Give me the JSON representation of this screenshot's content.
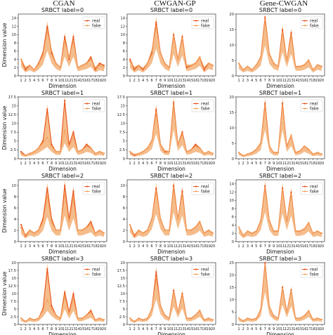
{
  "columns": [
    "CGAN",
    "CWGAN-GP",
    "Gene-CWGAN"
  ],
  "chart_data": [
    {
      "panel": "CGAN label 0",
      "type": "line",
      "title": "SRBCT label=0",
      "xlabel": "Dimension",
      "ylabel": "Dimension value",
      "categories": [
        "1",
        "2",
        "3",
        "4",
        "5",
        "6",
        "7",
        "8",
        "9",
        "10",
        "11",
        "12",
        "13",
        "14",
        "15",
        "16",
        "17",
        "18",
        "19",
        "20"
      ],
      "ylim": [
        0,
        15
      ],
      "yticks": [
        0,
        2,
        4,
        6,
        8,
        10,
        12,
        14
      ],
      "series": [
        {
          "name": "real",
          "values": [
            4,
            1.5,
            2.5,
            1.5,
            3,
            5.5,
            12,
            5.5,
            3,
            2,
            9.5,
            4,
            9.5,
            2,
            2.5,
            3,
            4.5,
            1.5,
            3,
            2.5
          ]
        },
        {
          "name": "fake",
          "values": [
            4,
            2,
            2.5,
            1.5,
            2.8,
            5,
            11,
            6,
            3,
            2,
            8.5,
            4.5,
            8.5,
            2,
            2.5,
            3,
            4,
            2,
            2.5,
            2
          ]
        }
      ]
    },
    {
      "panel": "CWGAN-GP label 0",
      "type": "line",
      "title": "SRBCT label=0",
      "xlabel": "Dimension",
      "ylabel": "",
      "categories": [
        "1",
        "2",
        "3",
        "4",
        "5",
        "6",
        "7",
        "8",
        "9",
        "10",
        "11",
        "12",
        "13",
        "14",
        "15",
        "16",
        "17",
        "18",
        "19",
        "20"
      ],
      "ylim": [
        0,
        15
      ],
      "yticks": [
        0,
        2,
        4,
        6,
        8,
        10,
        12,
        14
      ],
      "series": [
        {
          "name": "real",
          "values": [
            4,
            1.5,
            2.5,
            1.5,
            3,
            5.5,
            13,
            5.5,
            3,
            2,
            10,
            4,
            9.5,
            2,
            2.5,
            3,
            4.5,
            1.5,
            3,
            2.5
          ]
        },
        {
          "name": "fake",
          "values": [
            3.5,
            2,
            2.5,
            1.8,
            3,
            6,
            12,
            5.5,
            3,
            2,
            9.5,
            4,
            9,
            2.5,
            2.5,
            3,
            4.5,
            2,
            3,
            2.5
          ]
        }
      ]
    },
    {
      "panel": "Gene-CWGAN label 0",
      "type": "line",
      "title": "SRBCT label=0",
      "xlabel": "Dimension",
      "ylabel": "",
      "categories": [
        "1",
        "2",
        "3",
        "4",
        "5",
        "6",
        "7",
        "8",
        "9",
        "10",
        "11",
        "12",
        "13",
        "14",
        "15",
        "16",
        "17",
        "18",
        "19",
        "20"
      ],
      "ylim": [
        0,
        20
      ],
      "yticks": [
        0,
        5,
        10,
        15,
        20
      ],
      "series": [
        {
          "name": "real",
          "values": [
            4,
            2,
            3,
            2,
            3.5,
            6,
            19,
            7,
            4,
            3,
            15,
            5,
            14,
            3,
            3,
            3.5,
            5,
            2,
            3.5,
            3
          ]
        },
        {
          "name": "fake",
          "values": [
            4,
            2,
            3,
            2,
            3.5,
            6,
            18,
            7,
            4,
            3,
            14,
            5,
            13,
            3,
            3,
            3.5,
            5,
            2,
            3.5,
            3
          ]
        }
      ]
    },
    {
      "panel": "CGAN label 1",
      "type": "line",
      "title": "SRBCT label=1",
      "xlabel": "Dimension",
      "ylabel": "Dimension value",
      "categories": [
        "1",
        "2",
        "3",
        "4",
        "5",
        "6",
        "7",
        "8",
        "9",
        "10",
        "11",
        "12",
        "13",
        "14",
        "15",
        "16",
        "17",
        "18",
        "19",
        "20"
      ],
      "ylim": [
        0,
        17.5
      ],
      "yticks": [
        0,
        2.5,
        5.0,
        7.5,
        10.0,
        12.5,
        15.0,
        17.5
      ],
      "series": [
        {
          "name": "real",
          "values": [
            2,
            1,
            1.5,
            2,
            3,
            5,
            14,
            4,
            2,
            2,
            16.5,
            4,
            7.5,
            2,
            2.5,
            4,
            3,
            1.5,
            2,
            1.5
          ]
        },
        {
          "name": "fake",
          "values": [
            1.5,
            1,
            1.5,
            2,
            3,
            4.5,
            6,
            3.5,
            2,
            2,
            8,
            3.5,
            6,
            2,
            2.5,
            3.5,
            3,
            1.5,
            2,
            1.5
          ]
        }
      ]
    },
    {
      "panel": "CWGAN-GP label 1",
      "type": "line",
      "title": "SRBCT label=1",
      "xlabel": "Dimension",
      "ylabel": "",
      "categories": [
        "1",
        "2",
        "3",
        "4",
        "5",
        "6",
        "7",
        "8",
        "9",
        "10",
        "11",
        "12",
        "13",
        "14",
        "15",
        "16",
        "17",
        "18",
        "19",
        "20"
      ],
      "ylim": [
        0,
        17.5
      ],
      "yticks": [
        0,
        2.5,
        5.0,
        7.5,
        10.0,
        12.5,
        15.0,
        17.5
      ],
      "series": [
        {
          "name": "real",
          "values": [
            2,
            1,
            1.5,
            2,
            3,
            5,
            14,
            4,
            2,
            2,
            16,
            4,
            7.5,
            2,
            2.5,
            4,
            3,
            1.5,
            2,
            1.5
          ]
        },
        {
          "name": "fake",
          "values": [
            2,
            1.2,
            1.5,
            2,
            3,
            5,
            13,
            4,
            2.2,
            2,
            15,
            4,
            7,
            2,
            2.5,
            3.5,
            3,
            1.5,
            2,
            1.5
          ]
        }
      ]
    },
    {
      "panel": "Gene-CWGAN label 1",
      "type": "line",
      "title": "SRBCT label=1",
      "xlabel": "Dimension",
      "ylabel": "",
      "categories": [
        "1",
        "2",
        "3",
        "4",
        "5",
        "6",
        "7",
        "8",
        "9",
        "10",
        "11",
        "12",
        "13",
        "14",
        "15",
        "16",
        "17",
        "18",
        "19",
        "20"
      ],
      "ylim": [
        0,
        20
      ],
      "yticks": [
        0,
        5,
        10,
        15,
        20
      ],
      "series": [
        {
          "name": "real",
          "values": [
            2,
            1,
            1.5,
            2,
            3,
            5,
            18,
            4,
            2,
            2,
            18,
            4,
            7.5,
            2,
            2.5,
            4,
            3,
            1.5,
            2,
            1.5
          ]
        },
        {
          "name": "fake",
          "values": [
            2,
            1,
            1.5,
            2,
            3,
            5,
            17,
            4,
            2,
            2,
            17,
            4,
            7.5,
            2,
            2.5,
            4,
            3,
            1.5,
            2,
            1.5
          ]
        }
      ]
    },
    {
      "panel": "CGAN label 2",
      "type": "line",
      "title": "SRBCT label=2",
      "xlabel": "Dimension",
      "ylabel": "Dimension value",
      "categories": [
        "1",
        "2",
        "3",
        "4",
        "5",
        "6",
        "7",
        "8",
        "9",
        "10",
        "11",
        "12",
        "13",
        "14",
        "15",
        "16",
        "17",
        "18",
        "19",
        "20"
      ],
      "ylim": [
        0,
        11
      ],
      "yticks": [
        0,
        2,
        4,
        6,
        8,
        10
      ],
      "series": [
        {
          "name": "real",
          "values": [
            3,
            1,
            2,
            1.5,
            2,
            4,
            9.5,
            4,
            2,
            2,
            10,
            4,
            9,
            2,
            2,
            2.5,
            3.5,
            1.5,
            2,
            1.5
          ]
        },
        {
          "name": "fake",
          "values": [
            2.5,
            1.2,
            2,
            1.5,
            2,
            3.5,
            8,
            3.5,
            2,
            2,
            8.5,
            3.5,
            7.5,
            2,
            2,
            2.5,
            3,
            1.5,
            2,
            1.5
          ]
        }
      ]
    },
    {
      "panel": "CWGAN-GP label 2",
      "type": "line",
      "title": "SRBCT label=2",
      "xlabel": "Dimension",
      "ylabel": "",
      "categories": [
        "1",
        "2",
        "3",
        "4",
        "5",
        "6",
        "7",
        "8",
        "9",
        "10",
        "11",
        "12",
        "13",
        "14",
        "15",
        "16",
        "17",
        "18",
        "19",
        "20"
      ],
      "ylim": [
        0,
        11
      ],
      "yticks": [
        0,
        2,
        4,
        6,
        8,
        10
      ],
      "series": [
        {
          "name": "real",
          "values": [
            3,
            1,
            2,
            1.5,
            2,
            4,
            9.5,
            4,
            2,
            2,
            10,
            4,
            9,
            2,
            2,
            2.5,
            3.5,
            1.5,
            2,
            1.5
          ]
        },
        {
          "name": "fake",
          "values": [
            3,
            1.2,
            2,
            1.5,
            2,
            4,
            9,
            4,
            2,
            2,
            9.5,
            4,
            8.5,
            2,
            2,
            2.5,
            3.5,
            1.5,
            2,
            1.5
          ]
        }
      ]
    },
    {
      "panel": "Gene-CWGAN label 2",
      "type": "line",
      "title": "SRBCT label=2",
      "xlabel": "Dimension",
      "ylabel": "",
      "categories": [
        "1",
        "2",
        "3",
        "4",
        "5",
        "6",
        "7",
        "8",
        "9",
        "10",
        "11",
        "12",
        "13",
        "14",
        "15",
        "16",
        "17",
        "18",
        "19",
        "20"
      ],
      "ylim": [
        0,
        15
      ],
      "yticks": [
        0,
        2,
        4,
        6,
        8,
        10,
        12,
        14
      ],
      "series": [
        {
          "name": "real",
          "values": [
            3.5,
            1.5,
            2.5,
            2,
            2.5,
            5,
            13.5,
            5,
            2.5,
            2.5,
            13,
            5,
            12,
            2.5,
            2.5,
            3,
            4.5,
            2,
            2.5,
            2
          ]
        },
        {
          "name": "fake",
          "values": [
            3.5,
            1.5,
            2.5,
            2,
            2.5,
            5,
            13,
            5,
            2.5,
            2.5,
            12.5,
            5,
            11.5,
            2.5,
            2.5,
            3,
            4.5,
            2,
            2.5,
            2
          ]
        }
      ]
    },
    {
      "panel": "CGAN label 3",
      "type": "line",
      "title": "SRBCT label=3",
      "xlabel": "Dimension",
      "ylabel": "Dimension value",
      "categories": [
        "1",
        "2",
        "3",
        "4",
        "5",
        "6",
        "7",
        "8",
        "9",
        "10",
        "11",
        "12",
        "13",
        "14",
        "15",
        "16",
        "17",
        "18",
        "19",
        "20"
      ],
      "ylim": [
        0,
        20
      ],
      "yticks": [
        0,
        2.5,
        5.0,
        7.5,
        10.0,
        12.5,
        15.0,
        17.5,
        20.0
      ],
      "series": [
        {
          "name": "real",
          "values": [
            2,
            1,
            2,
            1.5,
            2,
            5,
            18,
            6,
            3,
            2,
            10.5,
            4,
            10,
            2,
            2,
            3,
            4.5,
            1.5,
            2,
            1.5
          ]
        },
        {
          "name": "fake",
          "values": [
            2,
            1,
            2,
            1.5,
            2,
            4.5,
            8,
            5,
            3,
            2,
            9,
            3.5,
            8,
            2,
            2,
            3,
            4,
            1.5,
            2,
            1.5
          ]
        }
      ]
    },
    {
      "panel": "CWGAN-GP label 3",
      "type": "line",
      "title": "SRBCT label=3",
      "xlabel": "Dimension",
      "ylabel": "",
      "categories": [
        "1",
        "2",
        "3",
        "4",
        "5",
        "6",
        "7",
        "8",
        "9",
        "10",
        "11",
        "12",
        "13",
        "14",
        "15",
        "16",
        "17",
        "18",
        "19",
        "20"
      ],
      "ylim": [
        0,
        20
      ],
      "yticks": [
        0,
        2.5,
        5.0,
        7.5,
        10.0,
        12.5,
        15.0,
        17.5,
        20.0
      ],
      "series": [
        {
          "name": "real",
          "values": [
            2,
            1,
            2,
            1.5,
            2,
            5,
            17,
            6,
            3,
            2,
            11,
            4,
            10,
            2,
            2,
            3,
            4.5,
            1.5,
            2,
            1.5
          ]
        },
        {
          "name": "fake",
          "values": [
            2,
            1,
            2,
            1.5,
            2,
            5,
            15,
            6,
            3,
            2,
            10.5,
            4,
            9.5,
            2,
            2,
            3,
            4.5,
            1.5,
            2,
            1.5
          ]
        }
      ]
    },
    {
      "panel": "Gene-CWGAN label 3",
      "type": "line",
      "title": "SRBCT label=3",
      "xlabel": "Dimension",
      "ylabel": "",
      "categories": [
        "1",
        "2",
        "3",
        "4",
        "5",
        "6",
        "7",
        "8",
        "9",
        "10",
        "11",
        "12",
        "13",
        "14",
        "15",
        "16",
        "17",
        "18",
        "19",
        "20"
      ],
      "ylim": [
        0,
        25
      ],
      "yticks": [
        0,
        5,
        10,
        15,
        20,
        25
      ],
      "series": [
        {
          "name": "real",
          "values": [
            2.5,
            1.5,
            2.5,
            2,
            2.5,
            6,
            25,
            7,
            3.5,
            2.5,
            15,
            5,
            14,
            2.5,
            2.5,
            3.5,
            5.5,
            2,
            2.5,
            2
          ]
        },
        {
          "name": "fake",
          "values": [
            2.5,
            1.5,
            2.5,
            2,
            2.5,
            6,
            24,
            7,
            3.5,
            2.5,
            14.5,
            5,
            13.5,
            2.5,
            2.5,
            3.5,
            5.5,
            2,
            2.5,
            2
          ]
        }
      ]
    }
  ],
  "colors": {
    "real": "#e8541c",
    "fake": "#f3a15c",
    "band": "#f2a766",
    "axis": "#333333"
  }
}
